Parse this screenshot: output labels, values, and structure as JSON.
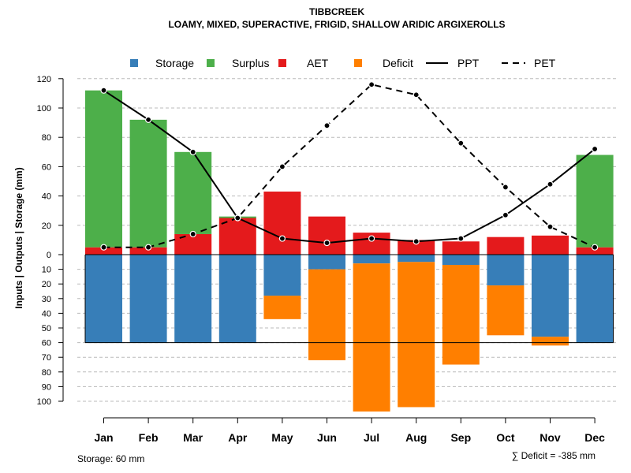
{
  "chart_data": {
    "type": "bar",
    "title": "TIBBCREEK",
    "subtitle": "LOAMY, MIXED, SUPERACTIVE, FRIGID, SHALLOW ARIDIC ARGIXEROLLS",
    "ylabel": "Inputs | Outputs | Storage    (mm)",
    "categories": [
      "Jan",
      "Feb",
      "Mar",
      "Apr",
      "May",
      "Jun",
      "Jul",
      "Aug",
      "Sep",
      "Oct",
      "Nov",
      "Dec"
    ],
    "ylim": [
      -115,
      120
    ],
    "yticks_pos": [
      0,
      20,
      40,
      60,
      80,
      100,
      120
    ],
    "yticks_neg": [
      10,
      20,
      30,
      40,
      50,
      60,
      70,
      80,
      90,
      100
    ],
    "legend": [
      "Storage",
      "Surplus",
      "AET",
      "Deficit",
      "PPT",
      "PET"
    ],
    "colors": {
      "storage": "#377eb8",
      "surplus": "#4daf4a",
      "aet": "#e41a1c",
      "deficit": "#ff7f00"
    },
    "series": [
      {
        "name": "AET",
        "values": [
          5,
          5,
          14,
          25,
          43,
          26,
          15,
          10,
          9,
          12,
          13,
          5
        ]
      },
      {
        "name": "Surplus",
        "values": [
          107,
          87,
          56,
          1,
          0,
          0,
          0,
          0,
          0,
          0,
          0,
          63
        ]
      },
      {
        "name": "Storage",
        "values": [
          60,
          60,
          60,
          60,
          28,
          10,
          6,
          5,
          7,
          21,
          56,
          60
        ]
      },
      {
        "name": "Deficit",
        "values": [
          0,
          0,
          0,
          0,
          16,
          62,
          101,
          99,
          68,
          34,
          6,
          0
        ]
      },
      {
        "name": "PPT",
        "values": [
          112,
          92,
          70,
          25,
          11,
          8,
          11,
          9,
          11,
          27,
          48,
          72
        ]
      },
      {
        "name": "PET",
        "values": [
          5,
          5,
          14,
          25,
          60,
          88,
          116,
          109,
          76,
          46,
          19,
          5
        ]
      }
    ],
    "storage_capacity": 60
  },
  "notes": {
    "storage": "Storage: 60 mm",
    "deficit": "∑ Deficit = -385 mm"
  }
}
